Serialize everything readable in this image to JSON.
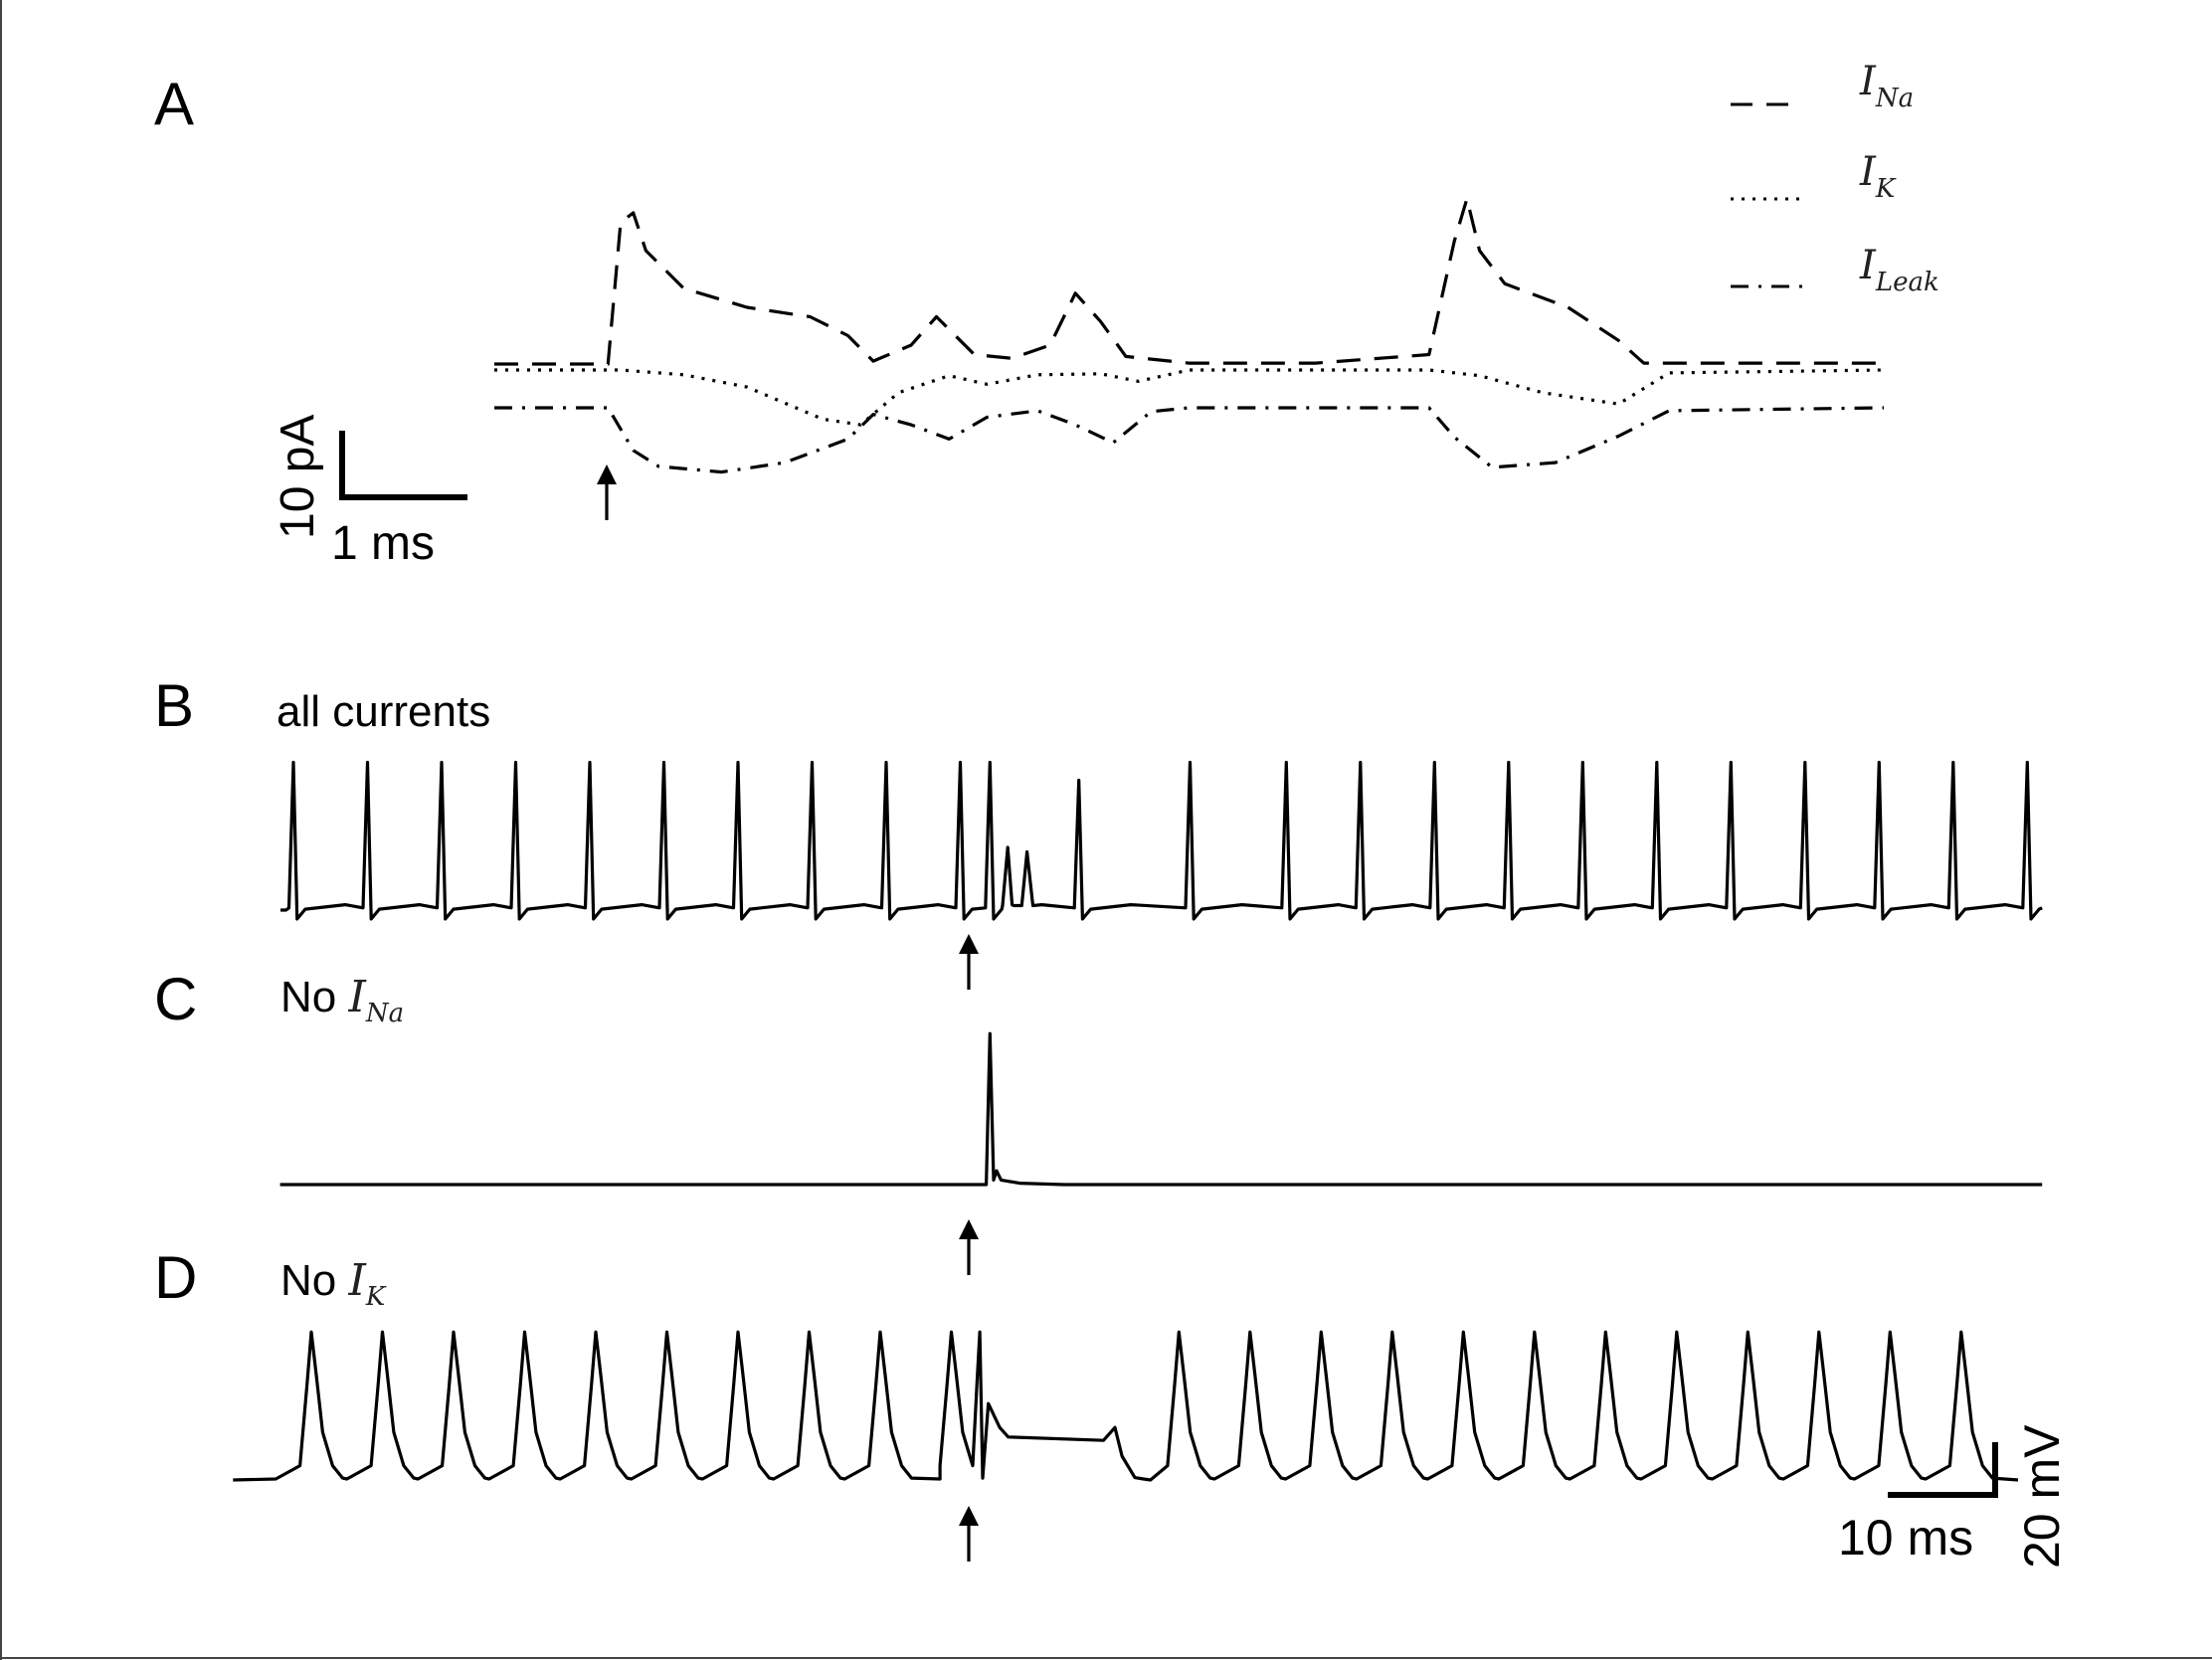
{
  "panels": {
    "A": {
      "letter": "A",
      "legend": [
        {
          "symbol": "I",
          "sub": "Na",
          "style": "dashed"
        },
        {
          "symbol": "I",
          "sub": "K",
          "style": "dotted"
        },
        {
          "symbol": "I",
          "sub": "Leak",
          "style": "dashdot"
        }
      ],
      "scalebar": {
        "vertical_label": "10 pA",
        "horizontal_label": "1 ms"
      }
    },
    "B": {
      "letter": "B",
      "title": "all currents"
    },
    "C": {
      "letter": "C",
      "title_prefix": "No ",
      "title_symbol": "I",
      "title_sub": "Na"
    },
    "D": {
      "letter": "D",
      "title_prefix": "No ",
      "title_symbol": "I",
      "title_sub": "K",
      "scalebar": {
        "horizontal_label": "10 ms",
        "vertical_label": "20 mV"
      }
    }
  },
  "chart_data": [
    {
      "panel": "A",
      "type": "line",
      "x_unit": "ms",
      "y_unit": "pA",
      "series": [
        {
          "name": "I_Na",
          "style": "dashed",
          "x": [
            0,
            0.9,
            1.0,
            1.1,
            1.2,
            1.5,
            2.0,
            2.5,
            2.8,
            3.0,
            3.3,
            3.5,
            3.8,
            4.1,
            4.4,
            4.6,
            4.8,
            5.0,
            5.5,
            6.5,
            7.4,
            7.6,
            7.7,
            7.8,
            8.0,
            8.5,
            8.9,
            9.1,
            9.5,
            11.0
          ],
          "y": [
            0,
            0,
            15,
            16,
            12,
            8,
            6,
            5,
            3,
            0.3,
            2,
            5,
            1,
            0.6,
            2,
            7.5,
            4.5,
            0.8,
            0.1,
            0.1,
            1,
            13,
            17.5,
            12,
            8.5,
            6,
            2.5,
            0.1,
            0.1,
            0.1
          ]
        },
        {
          "name": "I_K",
          "style": "dotted",
          "x": [
            0,
            1.0,
            1.5,
            2.0,
            2.6,
            2.9,
            3.2,
            3.6,
            3.9,
            4.3,
            4.8,
            5.1,
            5.5,
            7.4,
            7.8,
            8.3,
            8.9,
            9.3,
            11.0
          ],
          "y": [
            0,
            0,
            -0.5,
            -1.8,
            -5.2,
            -5.8,
            -2.4,
            -0.6,
            -1.5,
            -0.5,
            -0.4,
            -1.2,
            0,
            0,
            -0.6,
            -2.4,
            -3.6,
            -0.3,
            0
          ]
        },
        {
          "name": "I_Leak",
          "style": "dashdot",
          "x": [
            0,
            0.9,
            1.1,
            1.3,
            1.8,
            2.3,
            2.8,
            3.0,
            3.3,
            3.6,
            3.9,
            4.3,
            4.6,
            4.9,
            5.2,
            5.5,
            7.4,
            7.6,
            7.9,
            8.4,
            8.9,
            9.3,
            11.0
          ],
          "y": [
            0,
            0,
            -4.5,
            -6.2,
            -6.8,
            -5.8,
            -3.3,
            -0.7,
            -1.8,
            -3.3,
            -1.0,
            -0.3,
            -1.8,
            -3.7,
            -0.4,
            0,
            0,
            -3.1,
            -6.3,
            -5.8,
            -3.0,
            -0.3,
            0
          ]
        }
      ]
    },
    {
      "panel": "B",
      "type": "line",
      "x_unit": "ms",
      "y_unit": "mV",
      "stimulus_time_ms": 47,
      "spike_times_ms": [
        0,
        5,
        10,
        15,
        20,
        25,
        30,
        35,
        40,
        45,
        47,
        53,
        60.5,
        67,
        72,
        77,
        82,
        87,
        92,
        97,
        102,
        107,
        112,
        117
      ],
      "spike_peaks_mV": [
        33,
        33,
        33,
        33,
        33,
        33,
        33,
        33,
        33,
        33,
        33,
        29,
        33,
        33,
        33,
        33,
        33,
        33,
        33,
        33,
        33,
        33,
        33,
        33
      ],
      "subthreshold_events": [
        {
          "t_ms": 48.2,
          "peak_mV": 14
        },
        {
          "t_ms": 49.5,
          "peak_mV": 13
        }
      ],
      "baseline_mV": 0
    },
    {
      "panel": "C",
      "type": "line",
      "x_unit": "ms",
      "y_unit": "mV",
      "stimulus_time_ms": 47,
      "spike_times_ms": [
        47
      ],
      "spike_peaks_mV": [
        33
      ],
      "baseline_mV": 0
    },
    {
      "panel": "D",
      "type": "line",
      "x_unit": "ms",
      "y_unit": "mV",
      "stimulus_time_ms": 47,
      "spike_times_ms": [
        0,
        5,
        10,
        15,
        20,
        25,
        30,
        35,
        40,
        45,
        47,
        61,
        66,
        71,
        76,
        81,
        86,
        91,
        96,
        101,
        106,
        111,
        116
      ],
      "spike_peaks_mV": [
        31,
        31,
        31,
        31,
        31,
        31,
        31,
        31,
        31,
        31,
        31,
        31,
        31,
        31,
        31,
        31,
        31,
        31,
        31,
        31,
        31,
        31,
        31
      ],
      "plateau": {
        "from_ms": 49,
        "to_ms": 56,
        "level_mV": 9,
        "bump_ms": 56.5,
        "bump_mV": 11
      },
      "baseline_mV": 0
    }
  ]
}
